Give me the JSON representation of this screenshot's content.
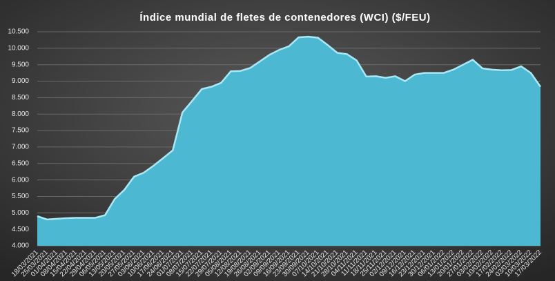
{
  "chart_data": {
    "type": "area",
    "title": "Índice mundial de fletes de contenedores (WCI) ($/FEU)",
    "categories": [
      "18/03/2021",
      "25/03/2021",
      "01/04/2021",
      "08/04/2021",
      "15/04/2021",
      "22/04/2021",
      "29/04/2021",
      "06/05/2021",
      "13/05/2021",
      "20/05/2021",
      "27/05/2021",
      "03/06/2021",
      "10/06/2021",
      "17/06/2021",
      "24/06/2021",
      "01/07/2021",
      "08/07/2021",
      "15/07/2021",
      "22/07/2021",
      "29/07/2021",
      "05/08/2021",
      "12/08/2021",
      "19/08/2021",
      "26/08/2021",
      "02/09/2021",
      "09/09/2021",
      "16/09/2021",
      "23/09/2021",
      "30/09/2021",
      "07/10/2021",
      "14/10/2021",
      "21/10/2021",
      "28/10/2021",
      "04/11/2021",
      "11/11/2021",
      "18/11/2021",
      "25/11/2021",
      "02/12/2021",
      "09/12/2021",
      "16/12/2021",
      "23/12/2021",
      "30/12/2021",
      "06/01/2022",
      "13/01/2022",
      "20/01/2022",
      "27/01/2022",
      "03/02/2022",
      "10/02/2022",
      "17/02/2022",
      "24/02/2022",
      "03/03/2022",
      "10/03/2022",
      "17/03/2022"
    ],
    "values": [
      4900,
      4800,
      4820,
      4840,
      4850,
      4850,
      4850,
      4930,
      5420,
      5700,
      6100,
      6220,
      6430,
      6660,
      6900,
      8050,
      8400,
      8760,
      8830,
      8950,
      9300,
      9310,
      9400,
      9600,
      9800,
      9950,
      10060,
      10330,
      10350,
      10320,
      10100,
      9860,
      9820,
      9630,
      9140,
      9150,
      9100,
      9150,
      9000,
      9200,
      9250,
      9250,
      9250,
      9350,
      9500,
      9650,
      9390,
      9350,
      9330,
      9340,
      9450,
      9250,
      8830
    ],
    "color": "#4db8d2",
    "ylim": [
      4000,
      10500
    ],
    "yticks": [
      {
        "value": 4000,
        "label": "4.000"
      },
      {
        "value": 4500,
        "label": "4.500"
      },
      {
        "value": 5000,
        "label": "5.000"
      },
      {
        "value": 5500,
        "label": "5.500"
      },
      {
        "value": 6000,
        "label": "6.000"
      },
      {
        "value": 6500,
        "label": "6.500"
      },
      {
        "value": 7000,
        "label": "7.000"
      },
      {
        "value": 7500,
        "label": "7.500"
      },
      {
        "value": 8000,
        "label": "8.000"
      },
      {
        "value": 8500,
        "label": "8.500"
      },
      {
        "value": 9000,
        "label": "9.000"
      },
      {
        "value": 9500,
        "label": "9.500"
      },
      {
        "value": 10000,
        "label": "10.000"
      },
      {
        "value": 10500,
        "label": "10.500"
      }
    ],
    "grid": true
  }
}
